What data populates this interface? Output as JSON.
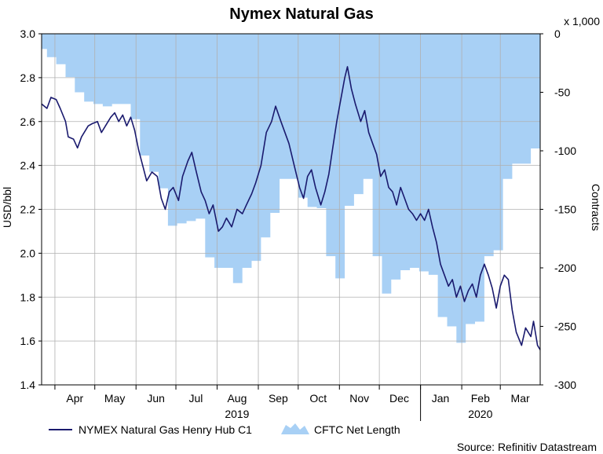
{
  "chart_data": {
    "type": "line",
    "title": "Nymex Natural Gas",
    "ylabel_left": "USD/bbl",
    "ylabel_right": "Contracts",
    "right_axis_multiplier": "x 1,000",
    "ylim_left": [
      1.4,
      3.0
    ],
    "ylim_right": [
      -300,
      0
    ],
    "yticks_left": [
      "3.0",
      "2.8",
      "2.6",
      "2.4",
      "2.2",
      "2.0",
      "1.8",
      "1.6",
      "1.4"
    ],
    "yticks_right": [
      "0",
      "-50",
      "-100",
      "-150",
      "-200",
      "-250",
      "-300"
    ],
    "x_range": [
      "2019-03-22",
      "2020-03-31"
    ],
    "month_labels": [
      {
        "label": "Apr",
        "date": "2019-04-16"
      },
      {
        "label": "May",
        "date": "2019-05-16"
      },
      {
        "label": "Jun",
        "date": "2019-06-16"
      },
      {
        "label": "Jul",
        "date": "2019-07-16"
      },
      {
        "label": "Aug",
        "date": "2019-08-16"
      },
      {
        "label": "Sep",
        "date": "2019-09-16"
      },
      {
        "label": "Oct",
        "date": "2019-10-16"
      },
      {
        "label": "Nov",
        "date": "2019-11-16"
      },
      {
        "label": "Dec",
        "date": "2019-12-16"
      },
      {
        "label": "Jan",
        "date": "2020-01-16"
      },
      {
        "label": "Feb",
        "date": "2020-02-15"
      },
      {
        "label": "Mar",
        "date": "2020-03-16"
      }
    ],
    "month_boundaries": [
      "2019-04-01",
      "2019-05-01",
      "2019-06-01",
      "2019-07-01",
      "2019-08-01",
      "2019-09-01",
      "2019-10-01",
      "2019-11-01",
      "2019-12-01",
      "2020-01-01",
      "2020-02-01",
      "2020-03-01"
    ],
    "year_labels": [
      {
        "label": "2019",
        "date": "2019-08-16"
      },
      {
        "label": "2020",
        "date": "2020-02-15"
      }
    ],
    "grid": true,
    "legend_position": "bottom-left",
    "series": [
      {
        "name": "NYMEX Natural Gas Henry Hub C1",
        "axis": "left",
        "style": "line",
        "color": "#1a1a6e",
        "points": [
          [
            "2019-03-22",
            2.68
          ],
          [
            "2019-03-26",
            2.66
          ],
          [
            "2019-03-29",
            2.71
          ],
          [
            "2019-04-02",
            2.7
          ],
          [
            "2019-04-05",
            2.66
          ],
          [
            "2019-04-09",
            2.6
          ],
          [
            "2019-04-11",
            2.53
          ],
          [
            "2019-04-15",
            2.52
          ],
          [
            "2019-04-18",
            2.48
          ],
          [
            "2019-04-21",
            2.53
          ],
          [
            "2019-04-24",
            2.56
          ],
          [
            "2019-04-26",
            2.58
          ],
          [
            "2019-04-29",
            2.59
          ],
          [
            "2019-05-03",
            2.6
          ],
          [
            "2019-05-06",
            2.55
          ],
          [
            "2019-05-09",
            2.58
          ],
          [
            "2019-05-13",
            2.62
          ],
          [
            "2019-05-16",
            2.64
          ],
          [
            "2019-05-19",
            2.6
          ],
          [
            "2019-05-22",
            2.63
          ],
          [
            "2019-05-25",
            2.58
          ],
          [
            "2019-05-28",
            2.62
          ],
          [
            "2019-05-31",
            2.56
          ],
          [
            "2019-06-03",
            2.47
          ],
          [
            "2019-06-06",
            2.4
          ],
          [
            "2019-06-09",
            2.33
          ],
          [
            "2019-06-13",
            2.37
          ],
          [
            "2019-06-17",
            2.35
          ],
          [
            "2019-06-20",
            2.25
          ],
          [
            "2019-06-23",
            2.2
          ],
          [
            "2019-06-26",
            2.28
          ],
          [
            "2019-06-29",
            2.3
          ],
          [
            "2019-07-03",
            2.24
          ],
          [
            "2019-07-06",
            2.35
          ],
          [
            "2019-07-10",
            2.42
          ],
          [
            "2019-07-13",
            2.46
          ],
          [
            "2019-07-16",
            2.38
          ],
          [
            "2019-07-20",
            2.28
          ],
          [
            "2019-07-23",
            2.24
          ],
          [
            "2019-07-26",
            2.18
          ],
          [
            "2019-07-29",
            2.22
          ],
          [
            "2019-08-02",
            2.1
          ],
          [
            "2019-08-05",
            2.12
          ],
          [
            "2019-08-08",
            2.16
          ],
          [
            "2019-08-12",
            2.12
          ],
          [
            "2019-08-16",
            2.2
          ],
          [
            "2019-08-20",
            2.18
          ],
          [
            "2019-08-23",
            2.22
          ],
          [
            "2019-08-27",
            2.27
          ],
          [
            "2019-08-30",
            2.32
          ],
          [
            "2019-09-03",
            2.4
          ],
          [
            "2019-09-07",
            2.55
          ],
          [
            "2019-09-11",
            2.6
          ],
          [
            "2019-09-14",
            2.67
          ],
          [
            "2019-09-18",
            2.6
          ],
          [
            "2019-09-21",
            2.55
          ],
          [
            "2019-09-24",
            2.5
          ],
          [
            "2019-09-28",
            2.4
          ],
          [
            "2019-10-02",
            2.3
          ],
          [
            "2019-10-05",
            2.25
          ],
          [
            "2019-10-08",
            2.35
          ],
          [
            "2019-10-11",
            2.38
          ],
          [
            "2019-10-14",
            2.3
          ],
          [
            "2019-10-18",
            2.22
          ],
          [
            "2019-10-21",
            2.28
          ],
          [
            "2019-10-24",
            2.36
          ],
          [
            "2019-10-27",
            2.48
          ],
          [
            "2019-10-30",
            2.6
          ],
          [
            "2019-11-02",
            2.7
          ],
          [
            "2019-11-05",
            2.8
          ],
          [
            "2019-11-07",
            2.85
          ],
          [
            "2019-11-10",
            2.75
          ],
          [
            "2019-11-13",
            2.68
          ],
          [
            "2019-11-17",
            2.6
          ],
          [
            "2019-11-20",
            2.65
          ],
          [
            "2019-11-23",
            2.55
          ],
          [
            "2019-11-26",
            2.5
          ],
          [
            "2019-11-29",
            2.45
          ],
          [
            "2019-12-02",
            2.35
          ],
          [
            "2019-12-05",
            2.38
          ],
          [
            "2019-12-08",
            2.3
          ],
          [
            "2019-12-11",
            2.28
          ],
          [
            "2019-12-14",
            2.22
          ],
          [
            "2019-12-17",
            2.3
          ],
          [
            "2019-12-20",
            2.25
          ],
          [
            "2019-12-23",
            2.2
          ],
          [
            "2019-12-26",
            2.18
          ],
          [
            "2019-12-29",
            2.15
          ],
          [
            "2020-01-01",
            2.18
          ],
          [
            "2020-01-04",
            2.15
          ],
          [
            "2020-01-07",
            2.2
          ],
          [
            "2020-01-10",
            2.12
          ],
          [
            "2020-01-13",
            2.05
          ],
          [
            "2020-01-16",
            1.95
          ],
          [
            "2020-01-19",
            1.9
          ],
          [
            "2020-01-22",
            1.85
          ],
          [
            "2020-01-25",
            1.88
          ],
          [
            "2020-01-28",
            1.8
          ],
          [
            "2020-01-31",
            1.85
          ],
          [
            "2020-02-03",
            1.78
          ],
          [
            "2020-02-06",
            1.83
          ],
          [
            "2020-02-09",
            1.86
          ],
          [
            "2020-02-12",
            1.8
          ],
          [
            "2020-02-15",
            1.9
          ],
          [
            "2020-02-18",
            1.95
          ],
          [
            "2020-02-21",
            1.9
          ],
          [
            "2020-02-24",
            1.84
          ],
          [
            "2020-02-27",
            1.75
          ],
          [
            "2020-03-01",
            1.85
          ],
          [
            "2020-03-04",
            1.9
          ],
          [
            "2020-03-07",
            1.88
          ],
          [
            "2020-03-10",
            1.74
          ],
          [
            "2020-03-13",
            1.64
          ],
          [
            "2020-03-17",
            1.58
          ],
          [
            "2020-03-20",
            1.66
          ],
          [
            "2020-03-24",
            1.62
          ],
          [
            "2020-03-26",
            1.69
          ],
          [
            "2020-03-29",
            1.58
          ],
          [
            "2020-03-31",
            1.56
          ]
        ]
      },
      {
        "name": "CFTC Net Length",
        "axis": "right",
        "style": "step-area",
        "color": "#a8d0f5",
        "points": [
          [
            "2019-03-22",
            -13
          ],
          [
            "2019-03-26",
            -20
          ],
          [
            "2019-04-02",
            -26
          ],
          [
            "2019-04-09",
            -37
          ],
          [
            "2019-04-16",
            -50
          ],
          [
            "2019-04-23",
            -58
          ],
          [
            "2019-04-30",
            -60
          ],
          [
            "2019-05-07",
            -62
          ],
          [
            "2019-05-14",
            -60
          ],
          [
            "2019-05-21",
            -60
          ],
          [
            "2019-05-28",
            -73
          ],
          [
            "2019-06-04",
            -104
          ],
          [
            "2019-06-11",
            -118
          ],
          [
            "2019-06-18",
            -132
          ],
          [
            "2019-06-25",
            -164
          ],
          [
            "2019-07-02",
            -162
          ],
          [
            "2019-07-09",
            -160
          ],
          [
            "2019-07-16",
            -158
          ],
          [
            "2019-07-23",
            -191
          ],
          [
            "2019-07-30",
            -200
          ],
          [
            "2019-08-06",
            -200
          ],
          [
            "2019-08-13",
            -213
          ],
          [
            "2019-08-20",
            -200
          ],
          [
            "2019-08-27",
            -194
          ],
          [
            "2019-09-03",
            -174
          ],
          [
            "2019-09-10",
            -153
          ],
          [
            "2019-09-17",
            -124
          ],
          [
            "2019-09-24",
            -124
          ],
          [
            "2019-10-01",
            -140
          ],
          [
            "2019-10-08",
            -148
          ],
          [
            "2019-10-15",
            -149
          ],
          [
            "2019-10-22",
            -190
          ],
          [
            "2019-10-29",
            -209
          ],
          [
            "2019-11-05",
            -147
          ],
          [
            "2019-11-12",
            -137
          ],
          [
            "2019-11-19",
            -124
          ],
          [
            "2019-11-26",
            -190
          ],
          [
            "2019-12-03",
            -222
          ],
          [
            "2019-12-10",
            -210
          ],
          [
            "2019-12-17",
            -202
          ],
          [
            "2019-12-24",
            -200
          ],
          [
            "2019-12-31",
            -203
          ],
          [
            "2020-01-07",
            -206
          ],
          [
            "2020-01-14",
            -242
          ],
          [
            "2020-01-21",
            -250
          ],
          [
            "2020-01-28",
            -264
          ],
          [
            "2020-02-04",
            -248
          ],
          [
            "2020-02-11",
            -246
          ],
          [
            "2020-02-18",
            -190
          ],
          [
            "2020-02-25",
            -185
          ],
          [
            "2020-03-03",
            -124
          ],
          [
            "2020-03-10",
            -111
          ],
          [
            "2020-03-17",
            -111
          ],
          [
            "2020-03-24",
            -98
          ],
          [
            "2020-03-31",
            -98
          ]
        ]
      }
    ]
  },
  "legend": {
    "line_label": "NYMEX Natural Gas Henry Hub C1",
    "area_label": "CFTC Net Length"
  },
  "source_text": "Source: Refinitiv Datastream",
  "colors": {
    "line": "#1a1a6e",
    "area": "#a8d0f5",
    "grid": "#b0b0b0",
    "axis": "#000000"
  }
}
